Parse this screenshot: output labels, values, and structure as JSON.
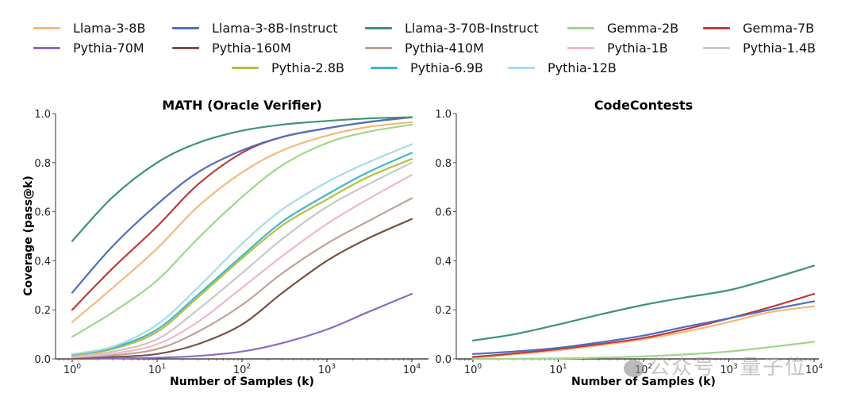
{
  "legend": {
    "placement": "top-center",
    "rows": [
      [
        "Llama-3-8B",
        "Llama-3-8B-Instruct",
        "Llama-3-70B-Instruct",
        "Gemma-2B",
        "Gemma-7B"
      ],
      [
        "Pythia-70M",
        "Pythia-160M",
        "Pythia-410M",
        "Pythia-1B",
        "Pythia-1.4B"
      ],
      [
        "Pythia-2.8B",
        "Pythia-6.9B",
        "Pythia-12B"
      ]
    ]
  },
  "colors": {
    "Llama-3-8B": "#f5b87a",
    "Llama-3-8B-Instruct": "#4f6fbd",
    "Llama-3-70B-Instruct": "#3d9470",
    "Gemma-2B": "#9fd68c",
    "Gemma-7B": "#c23a3a",
    "Pythia-70M": "#8c6bc0",
    "Pythia-160M": "#7a5245",
    "Pythia-410M": "#bfa198",
    "Pythia-1B": "#f0b8c8",
    "Pythia-1.4B": "#c8c8c8",
    "Pythia-2.8B": "#bcbf3a",
    "Pythia-6.9B": "#3fb8c8",
    "Pythia-12B": "#a8dbe6"
  },
  "watermark": "公众号 · 量子位",
  "chart_data": [
    {
      "type": "line",
      "title": "MATH (Oracle Verifier)",
      "xlabel": "Number of Samples (k)",
      "ylabel": "Coverage (pass@k)",
      "xscale": "log",
      "xlim": [
        1,
        10000
      ],
      "ylim": [
        0,
        1.0
      ],
      "xticks": [
        "10^0",
        "10^1",
        "10^2",
        "10^3",
        "10^4"
      ],
      "yticks": [
        "0.0",
        "0.2",
        "0.4",
        "0.6",
        "0.8",
        "1.0"
      ],
      "grid": false,
      "x": [
        1,
        3,
        10,
        30,
        100,
        300,
        1000,
        3000,
        10000
      ],
      "series": [
        {
          "name": "Llama-3-70B-Instruct",
          "values": [
            0.48,
            0.66,
            0.8,
            0.88,
            0.93,
            0.955,
            0.97,
            0.98,
            0.985
          ]
        },
        {
          "name": "Llama-3-8B-Instruct",
          "values": [
            0.27,
            0.46,
            0.63,
            0.76,
            0.85,
            0.905,
            0.94,
            0.965,
            0.985
          ]
        },
        {
          "name": "Gemma-7B",
          "values": [
            0.2,
            0.37,
            0.54,
            0.71,
            0.84,
            0.905,
            0.94,
            0.965,
            0.985
          ]
        },
        {
          "name": "Llama-3-8B",
          "values": [
            0.15,
            0.29,
            0.45,
            0.62,
            0.76,
            0.85,
            0.91,
            0.945,
            0.965
          ]
        },
        {
          "name": "Gemma-2B",
          "values": [
            0.09,
            0.19,
            0.32,
            0.49,
            0.66,
            0.79,
            0.88,
            0.925,
            0.955
          ]
        },
        {
          "name": "Pythia-12B",
          "values": [
            0.02,
            0.05,
            0.14,
            0.29,
            0.47,
            0.61,
            0.72,
            0.8,
            0.875
          ]
        },
        {
          "name": "Pythia-6.9B",
          "values": [
            0.018,
            0.045,
            0.12,
            0.26,
            0.42,
            0.56,
            0.67,
            0.76,
            0.84
          ]
        },
        {
          "name": "Pythia-2.8B",
          "values": [
            0.015,
            0.04,
            0.11,
            0.25,
            0.41,
            0.545,
            0.65,
            0.74,
            0.815
          ]
        },
        {
          "name": "Pythia-1.4B",
          "values": [
            0.012,
            0.03,
            0.08,
            0.2,
            0.35,
            0.49,
            0.62,
            0.71,
            0.8
          ]
        },
        {
          "name": "Pythia-1B",
          "values": [
            0.008,
            0.022,
            0.06,
            0.15,
            0.29,
            0.42,
            0.55,
            0.65,
            0.75
          ]
        },
        {
          "name": "Pythia-410M",
          "values": [
            0.006,
            0.015,
            0.04,
            0.11,
            0.22,
            0.35,
            0.47,
            0.56,
            0.655
          ]
        },
        {
          "name": "Pythia-160M",
          "values": [
            0.003,
            0.008,
            0.02,
            0.06,
            0.14,
            0.27,
            0.4,
            0.49,
            0.57
          ]
        },
        {
          "name": "Pythia-70M",
          "values": [
            0.0,
            0.002,
            0.005,
            0.012,
            0.03,
            0.065,
            0.12,
            0.19,
            0.265
          ]
        }
      ]
    },
    {
      "type": "line",
      "title": "CodeContests",
      "xlabel": "Number of Samples (k)",
      "ylabel": "",
      "xscale": "log",
      "xlim": [
        1,
        10000
      ],
      "ylim": [
        0,
        1.0
      ],
      "xticks": [
        "10^0",
        "10^1",
        "10^2",
        "10^3",
        "10^4"
      ],
      "yticks": [
        "0.0",
        "0.2",
        "0.4",
        "0.6",
        "0.8",
        "1.0"
      ],
      "grid": false,
      "x": [
        1,
        3,
        10,
        30,
        100,
        300,
        1000,
        3000,
        10000
      ],
      "series": [
        {
          "name": "Llama-3-70B-Instruct",
          "values": [
            0.075,
            0.1,
            0.14,
            0.18,
            0.22,
            0.25,
            0.28,
            0.325,
            0.38
          ]
        },
        {
          "name": "Llama-3-8B-Instruct",
          "values": [
            0.02,
            0.03,
            0.045,
            0.067,
            0.095,
            0.13,
            0.165,
            0.2,
            0.235
          ]
        },
        {
          "name": "Gemma-7B",
          "values": [
            0.008,
            0.022,
            0.04,
            0.06,
            0.085,
            0.12,
            0.165,
            0.21,
            0.265
          ]
        },
        {
          "name": "Llama-3-8B",
          "values": [
            0.005,
            0.018,
            0.035,
            0.055,
            0.08,
            0.11,
            0.15,
            0.19,
            0.215
          ]
        },
        {
          "name": "Gemma-2B",
          "values": [
            0.0,
            0.001,
            0.002,
            0.005,
            0.01,
            0.018,
            0.03,
            0.048,
            0.07
          ]
        }
      ]
    }
  ]
}
